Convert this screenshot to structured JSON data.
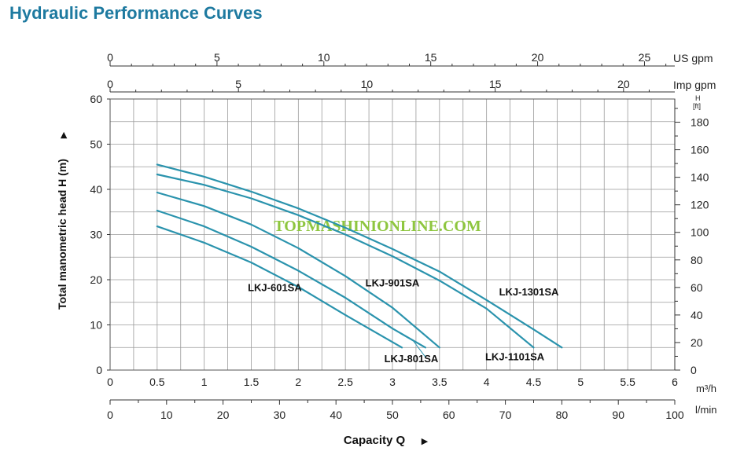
{
  "title": "Hydraulic Performance Curves",
  "watermark": "TOPMASHINIONLINE.COM",
  "colors": {
    "curve": "#2a93ad",
    "title": "#1e7aa0",
    "grid": "#9a9a9a",
    "watermark": "#8ec63f"
  },
  "chart_data": {
    "type": "line",
    "title": "Hydraulic Performance Curves",
    "xlabel": "Capacity Q",
    "ylabel": "Total manometric head H (m)",
    "xlim": [
      0,
      6
    ],
    "ylim": [
      0,
      60
    ],
    "grid": true,
    "x_ticks": [
      "0",
      "0.5",
      "1",
      "1.5",
      "2",
      "2.5",
      "3",
      "3.5",
      "4",
      "4.5",
      "5",
      "5.5",
      "6"
    ],
    "x_unit": "m³/h",
    "y_ticks": [
      "0",
      "10",
      "20",
      "30",
      "40",
      "50",
      "60"
    ],
    "lmin_ticks": [
      "0",
      "10",
      "20",
      "30",
      "40",
      "50",
      "60",
      "70",
      "80",
      "90",
      "100"
    ],
    "lmin_unit": "l/min",
    "usgpm_ticks": [
      "0",
      "5",
      "10",
      "15",
      "20",
      "25"
    ],
    "usgpm_unit": "US gpm",
    "impgpm_ticks": [
      "0",
      "5",
      "10",
      "15",
      "20"
    ],
    "impgpm_unit": "Imp gpm",
    "ft_ticks": [
      "0",
      "20",
      "40",
      "60",
      "80",
      "100",
      "120",
      "140",
      "160",
      "180"
    ],
    "ft_unit_top": "H",
    "ft_unit": "[ft]",
    "series": [
      {
        "name": "LKJ-601SA",
        "x": [
          0.5,
          1.0,
          1.5,
          2.0,
          2.5,
          3.1
        ],
        "y": [
          31.8,
          28.2,
          23.8,
          18.4,
          12.2,
          5.0
        ]
      },
      {
        "name": "LKJ-801SA",
        "x": [
          0.5,
          1.0,
          1.5,
          2.0,
          2.5,
          3.0,
          3.35
        ],
        "y": [
          35.3,
          31.8,
          27.3,
          22.0,
          16.0,
          9.2,
          5.0
        ]
      },
      {
        "name": "LKJ-901SA",
        "x": [
          0.5,
          1.0,
          1.5,
          2.0,
          2.5,
          3.0,
          3.5
        ],
        "y": [
          39.3,
          36.3,
          32.2,
          27.0,
          20.8,
          13.8,
          5.0
        ]
      },
      {
        "name": "LKJ-1101SA",
        "x": [
          0.5,
          1.0,
          1.5,
          2.0,
          2.5,
          3.0,
          3.5,
          4.0,
          4.5
        ],
        "y": [
          43.3,
          41.0,
          38.0,
          34.3,
          30.0,
          25.2,
          19.8,
          13.6,
          5.0
        ]
      },
      {
        "name": "LKJ-1301SA",
        "x": [
          0.5,
          1.0,
          1.5,
          2.0,
          2.5,
          3.0,
          3.5,
          4.0,
          4.5,
          4.8
        ],
        "y": [
          45.5,
          42.8,
          39.5,
          35.8,
          31.5,
          26.8,
          21.8,
          15.5,
          9.0,
          5.0
        ]
      }
    ]
  }
}
